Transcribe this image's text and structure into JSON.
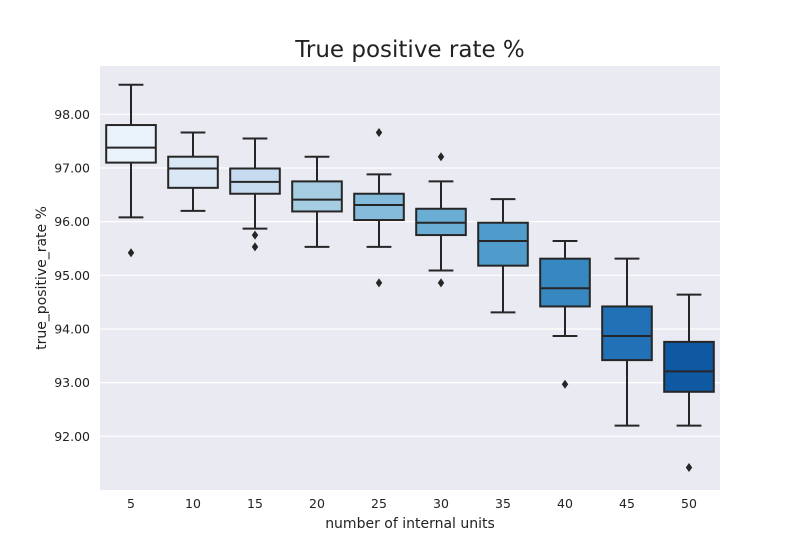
{
  "chart_data": {
    "type": "box",
    "title": "True positive rate %",
    "xlabel": "number of internal units",
    "ylabel": "true_positive_rate %",
    "categories": [
      "5",
      "10",
      "15",
      "20",
      "25",
      "30",
      "35",
      "40",
      "45",
      "50"
    ],
    "y_ticks": [
      92.0,
      93.0,
      94.0,
      95.0,
      96.0,
      97.0,
      98.0
    ],
    "y_tick_labels": [
      "92.00",
      "93.00",
      "94.00",
      "95.00",
      "96.00",
      "97.00",
      "98.00"
    ],
    "ylim": [
      91.0,
      98.9
    ],
    "grid": true,
    "legend": "none",
    "boxes": [
      {
        "category": "5",
        "whisker_low": 96.08,
        "q1": 97.1,
        "median": 97.38,
        "q3": 97.8,
        "whisker_high": 98.55,
        "outliers": [
          95.42
        ],
        "color": "#eaf3fb"
      },
      {
        "category": "10",
        "whisker_low": 96.2,
        "q1": 96.63,
        "median": 96.99,
        "q3": 97.21,
        "whisker_high": 97.66,
        "outliers": [],
        "color": "#dae8f6"
      },
      {
        "category": "15",
        "whisker_low": 95.87,
        "q1": 96.52,
        "median": 96.74,
        "q3": 96.99,
        "whisker_high": 97.55,
        "outliers": [
          95.75,
          95.53
        ],
        "color": "#c6dbef"
      },
      {
        "category": "20",
        "whisker_low": 95.53,
        "q1": 96.19,
        "median": 96.41,
        "q3": 96.75,
        "whisker_high": 97.21,
        "outliers": [],
        "color": "#a6cde2"
      },
      {
        "category": "25",
        "whisker_low": 95.53,
        "q1": 96.03,
        "median": 96.31,
        "q3": 96.52,
        "whisker_high": 96.88,
        "outliers": [
          97.66,
          94.86
        ],
        "color": "#85bcdb"
      },
      {
        "category": "30",
        "whisker_low": 95.09,
        "q1": 95.75,
        "median": 95.98,
        "q3": 96.24,
        "whisker_high": 96.75,
        "outliers": [
          97.21,
          94.86
        ],
        "color": "#6aaed6"
      },
      {
        "category": "35",
        "whisker_low": 94.31,
        "q1": 95.18,
        "median": 95.64,
        "q3": 95.98,
        "whisker_high": 96.42,
        "outliers": [],
        "color": "#4f9bcb"
      },
      {
        "category": "40",
        "whisker_low": 93.87,
        "q1": 94.42,
        "median": 94.76,
        "q3": 95.31,
        "whisker_high": 95.64,
        "outliers": [
          92.97
        ],
        "color": "#3787c0"
      },
      {
        "category": "45",
        "whisker_low": 92.2,
        "q1": 93.42,
        "median": 93.87,
        "q3": 94.42,
        "whisker_high": 95.31,
        "outliers": [],
        "color": "#2270b5"
      },
      {
        "category": "50",
        "whisker_low": 92.2,
        "q1": 92.83,
        "median": 93.21,
        "q3": 93.76,
        "whisker_high": 94.64,
        "outliers": [
          91.42
        ],
        "color": "#0f59a3"
      }
    ],
    "plot_background": "#eaeaf2",
    "line_color": "#262626"
  }
}
